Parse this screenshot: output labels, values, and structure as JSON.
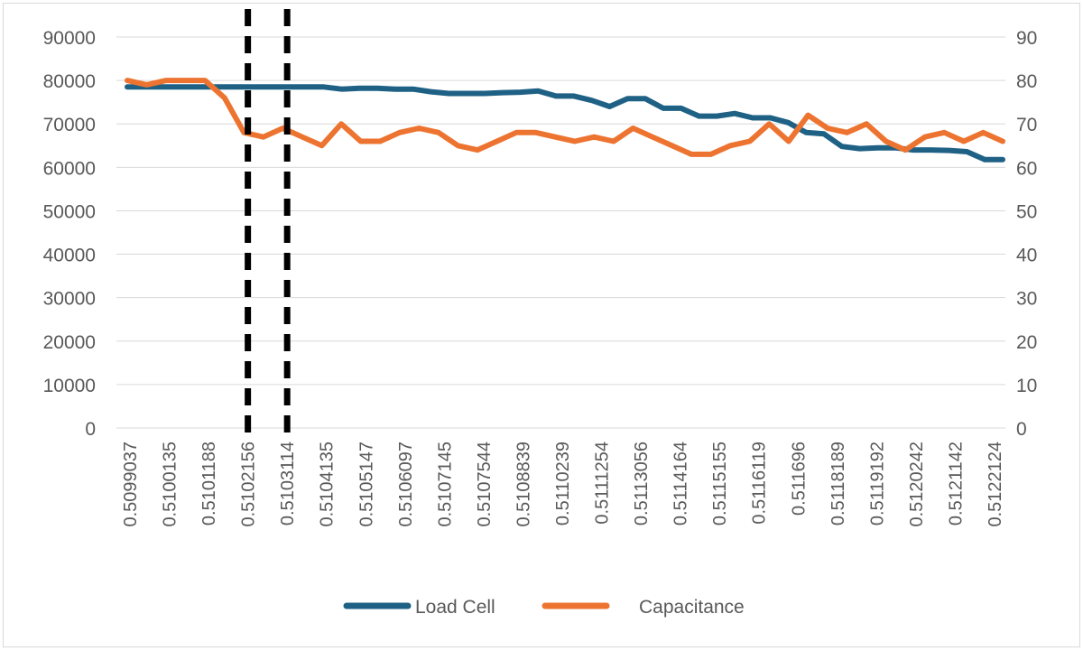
{
  "chart_data": {
    "type": "line",
    "title": "",
    "xlabel": "",
    "ylabel": "",
    "ylabel_right": "",
    "ylim": [
      0,
      90000
    ],
    "y_ticks": [
      0,
      10000,
      20000,
      30000,
      40000,
      50000,
      60000,
      70000,
      80000,
      90000
    ],
    "ylim_right": [
      0,
      90
    ],
    "y2_ticks": [
      0,
      10,
      20,
      30,
      40,
      50,
      60,
      70,
      80,
      90
    ],
    "x_tick_labels": [
      "0.5099037",
      "0.5100135",
      "0.5101188",
      "0.5102156",
      "0.5103114",
      "0.5104135",
      "0.5105147",
      "0.5106097",
      "0.5107145",
      "0.5107544",
      "0.5108839",
      "0.5110239",
      "0.5111254",
      "0.5113056",
      "0.5114164",
      "0.5115155",
      "0.5116119",
      "0.511696",
      "0.5118189",
      "0.5119192",
      "0.5120242",
      "0.5121142",
      "0.5122124"
    ],
    "series": [
      {
        "name": "Load Cell",
        "axis": "left",
        "color": "#1f6185",
        "values": [
          78500,
          78500,
          78500,
          78500,
          78500,
          78500,
          78500,
          78500,
          78500,
          78500,
          78500,
          78500,
          78000,
          78200,
          78200,
          78000,
          78000,
          77400,
          77000,
          77000,
          77000,
          77200,
          77300,
          77600,
          76400,
          76400,
          75400,
          74000,
          75800,
          75800,
          73600,
          73600,
          71800,
          71800,
          72400,
          71400,
          71400,
          70300,
          68000,
          67700,
          64800,
          64300,
          64500,
          64500,
          64000,
          64000,
          63900,
          63600,
          61800,
          61800
        ]
      },
      {
        "name": "Capacitance",
        "axis": "right",
        "color": "#ed7430",
        "values": [
          80,
          79,
          80,
          80,
          80,
          76,
          68,
          67,
          69,
          67,
          65,
          70,
          66,
          66,
          68,
          69,
          68,
          65,
          64,
          66,
          68,
          68,
          67,
          66,
          67,
          66,
          69,
          67,
          65,
          63,
          63,
          65,
          66,
          70,
          66,
          72,
          69,
          68,
          70,
          66,
          64,
          67,
          68,
          66,
          68,
          66
        ]
      }
    ],
    "legend": {
      "position": "bottom"
    },
    "grid": true,
    "annotations": [
      {
        "type": "vertical-dashed-line",
        "x_category": "0.5102156",
        "color": "#000000"
      },
      {
        "type": "vertical-dashed-line",
        "x_category": "0.5103114",
        "color": "#000000"
      }
    ]
  }
}
